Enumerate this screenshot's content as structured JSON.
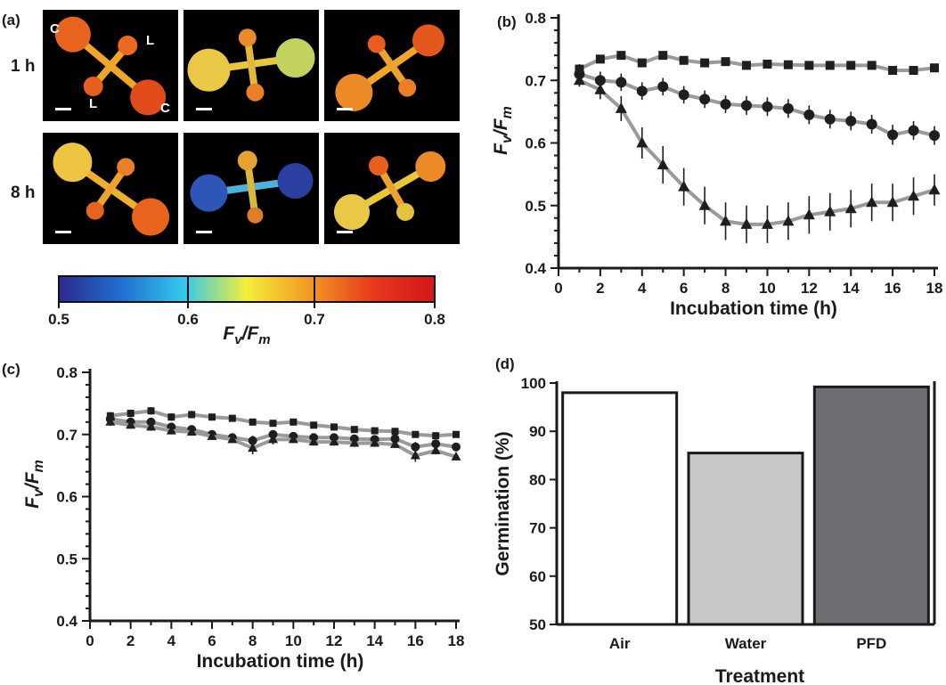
{
  "panels": {
    "a": {
      "label": "(a)",
      "row_labels": [
        "1 h",
        "8 h"
      ],
      "image_labels": [
        "C",
        "L",
        "L",
        "C"
      ],
      "colorbar": {
        "ticks": [
          "0.5",
          "0.6",
          "0.7",
          "0.8"
        ],
        "label_main": "F",
        "label_sub1": "v",
        "label_sep": "/F",
        "label_sub2": "m",
        "colors": [
          "#2b2a8f",
          "#1f6fd0",
          "#36c8ee",
          "#f5ee3a",
          "#f29a22",
          "#e83a1c",
          "#d4161a"
        ]
      }
    },
    "b": {
      "label": "(b)"
    },
    "c": {
      "label": "(c)"
    },
    "d": {
      "label": "(d)"
    }
  },
  "chart_data": [
    {
      "panel": "b",
      "type": "line",
      "xlabel": "Incubation time (h)",
      "ylabel": "Fv/Fm",
      "xlim": [
        0,
        18
      ],
      "ylim": [
        0.4,
        0.8
      ],
      "xticks": [
        "0",
        "2",
        "4",
        "6",
        "8",
        "10",
        "12",
        "14",
        "16",
        "18"
      ],
      "yticks": [
        "0.4",
        "0.5",
        "0.6",
        "0.7",
        "0.8"
      ],
      "x": [
        1,
        2,
        3,
        4,
        5,
        6,
        7,
        8,
        9,
        10,
        11,
        12,
        13,
        14,
        15,
        16,
        17,
        18
      ],
      "series": [
        {
          "marker": "square",
          "values": [
            0.718,
            0.734,
            0.74,
            0.728,
            0.74,
            0.732,
            0.728,
            0.73,
            0.724,
            0.726,
            0.725,
            0.724,
            0.724,
            0.724,
            0.724,
            0.716,
            0.716,
            0.72
          ],
          "errors": [
            0.008,
            0.006,
            0.006,
            0.006,
            0.006,
            0.005,
            0.005,
            0.005,
            0.005,
            0.005,
            0.005,
            0.005,
            0.005,
            0.005,
            0.005,
            0.005,
            0.005,
            0.005
          ]
        },
        {
          "marker": "circle",
          "values": [
            0.71,
            0.7,
            0.697,
            0.683,
            0.69,
            0.677,
            0.67,
            0.662,
            0.66,
            0.658,
            0.655,
            0.645,
            0.638,
            0.635,
            0.63,
            0.613,
            0.62,
            0.612
          ],
          "errors": [
            0.012,
            0.014,
            0.014,
            0.014,
            0.014,
            0.014,
            0.014,
            0.014,
            0.015,
            0.015,
            0.015,
            0.015,
            0.015,
            0.015,
            0.015,
            0.016,
            0.015,
            0.015
          ]
        },
        {
          "marker": "triangle",
          "values": [
            0.7,
            0.685,
            0.655,
            0.6,
            0.565,
            0.53,
            0.5,
            0.475,
            0.47,
            0.47,
            0.475,
            0.485,
            0.49,
            0.495,
            0.505,
            0.505,
            0.515,
            0.525
          ],
          "errors": [
            0.01,
            0.015,
            0.02,
            0.025,
            0.03,
            0.03,
            0.03,
            0.03,
            0.03,
            0.03,
            0.03,
            0.03,
            0.03,
            0.03,
            0.03,
            0.03,
            0.03,
            0.025
          ]
        }
      ]
    },
    {
      "panel": "c",
      "type": "line",
      "xlabel": "Incubation time (h)",
      "ylabel": "Fv/Fm",
      "xlim": [
        0,
        18
      ],
      "ylim": [
        0.4,
        0.8
      ],
      "xticks": [
        "0",
        "2",
        "4",
        "6",
        "8",
        "10",
        "12",
        "14",
        "16",
        "18"
      ],
      "yticks": [
        "0.4",
        "0.5",
        "0.6",
        "0.7",
        "0.8"
      ],
      "x": [
        1,
        2,
        3,
        4,
        5,
        6,
        7,
        8,
        9,
        10,
        11,
        12,
        13,
        14,
        15,
        16,
        17,
        18
      ],
      "series": [
        {
          "marker": "square",
          "values": [
            0.73,
            0.734,
            0.738,
            0.728,
            0.732,
            0.728,
            0.726,
            0.72,
            0.718,
            0.72,
            0.715,
            0.712,
            0.708,
            0.706,
            0.705,
            0.7,
            0.698,
            0.7
          ],
          "errors": [
            0.006,
            0.006,
            0.006,
            0.006,
            0.006,
            0.005,
            0.005,
            0.005,
            0.005,
            0.005,
            0.005,
            0.005,
            0.005,
            0.005,
            0.005,
            0.005,
            0.005,
            0.005
          ]
        },
        {
          "marker": "circle",
          "values": [
            0.725,
            0.72,
            0.72,
            0.712,
            0.708,
            0.7,
            0.695,
            0.69,
            0.7,
            0.697,
            0.695,
            0.695,
            0.693,
            0.692,
            0.693,
            0.68,
            0.685,
            0.68
          ],
          "errors": [
            0.006,
            0.006,
            0.006,
            0.006,
            0.006,
            0.006,
            0.006,
            0.008,
            0.006,
            0.006,
            0.006,
            0.006,
            0.006,
            0.006,
            0.006,
            0.008,
            0.006,
            0.006
          ]
        },
        {
          "marker": "triangle",
          "values": [
            0.72,
            0.715,
            0.712,
            0.706,
            0.704,
            0.697,
            0.692,
            0.678,
            0.692,
            0.692,
            0.688,
            0.688,
            0.686,
            0.686,
            0.684,
            0.666,
            0.674,
            0.664
          ],
          "errors": [
            0.006,
            0.006,
            0.006,
            0.006,
            0.006,
            0.006,
            0.006,
            0.01,
            0.008,
            0.006,
            0.006,
            0.006,
            0.006,
            0.006,
            0.006,
            0.01,
            0.006,
            0.006
          ]
        }
      ]
    },
    {
      "panel": "d",
      "type": "bar",
      "xlabel": "Treatment",
      "ylabel": "Germination (%)",
      "categories": [
        "Air",
        "Water",
        "PFD"
      ],
      "values": [
        98,
        85.5,
        99.2
      ],
      "colors": [
        "#ffffff",
        "#c6c7c9",
        "#6e6f72"
      ],
      "ylim": [
        50,
        100
      ],
      "yticks": [
        "50",
        "60",
        "70",
        "80",
        "90",
        "100"
      ]
    }
  ]
}
